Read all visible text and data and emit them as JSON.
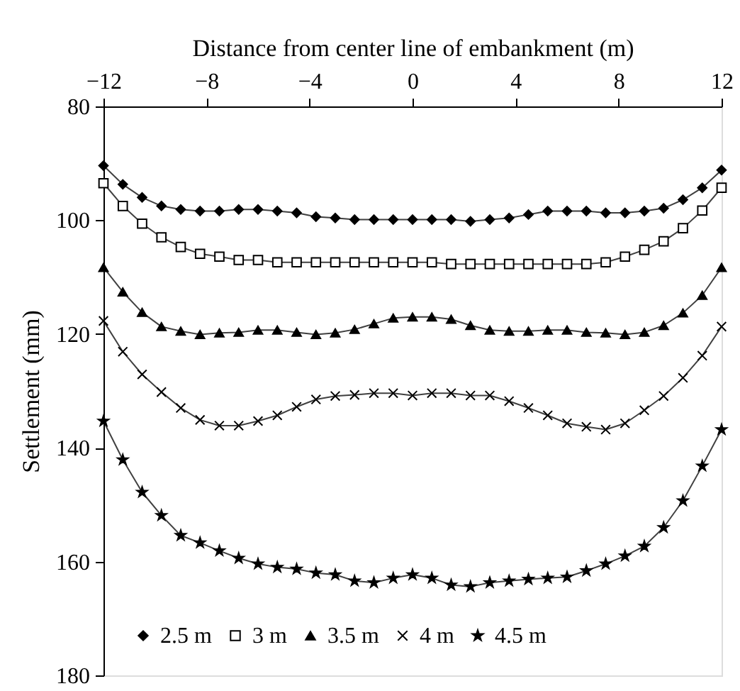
{
  "chart_data": {
    "type": "line",
    "xlabel": "Distance from center line of embankment (m)",
    "ylabel": "Settlement (mm)",
    "x": [
      -12,
      -11.25,
      -10.5,
      -9.75,
      -9,
      -8.25,
      -7.5,
      -6.75,
      -6,
      -5.25,
      -4.5,
      -3.75,
      -3,
      -2.25,
      -1.5,
      -0.75,
      0,
      0.75,
      1.5,
      2.25,
      3,
      3.75,
      4.5,
      5.25,
      6,
      6.75,
      7.5,
      8.25,
      9,
      9.75,
      10.5,
      11.25,
      12
    ],
    "xlim": [
      -12,
      12
    ],
    "xticks": [
      -12,
      -8,
      -4,
      0,
      4,
      8,
      12
    ],
    "ylim": [
      180,
      80
    ],
    "yticks": [
      80,
      100,
      120,
      140,
      160,
      180
    ],
    "grid": false,
    "legend": "bottom",
    "series": [
      {
        "name": "2.5 m",
        "color": "#000000",
        "marker": "diamond",
        "values": [
          90.4,
          93.7,
          96.0,
          97.5,
          98.1,
          98.4,
          98.4,
          98.1,
          98.1,
          98.4,
          98.7,
          99.4,
          99.6,
          99.9,
          99.9,
          99.9,
          99.9,
          99.9,
          99.9,
          100.2,
          99.9,
          99.6,
          99.0,
          98.4,
          98.4,
          98.4,
          98.7,
          98.7,
          98.4,
          97.9,
          96.4,
          94.3,
          91.2
        ]
      },
      {
        "name": "3 m",
        "color": "#000000",
        "marker": "square",
        "values": [
          93.5,
          97.5,
          100.6,
          103.0,
          104.7,
          105.9,
          106.4,
          107.0,
          107.0,
          107.4,
          107.4,
          107.4,
          107.4,
          107.4,
          107.4,
          107.4,
          107.4,
          107.4,
          107.7,
          107.7,
          107.7,
          107.7,
          107.7,
          107.7,
          107.7,
          107.7,
          107.4,
          106.4,
          105.2,
          103.7,
          101.4,
          98.3,
          94.3
        ]
      },
      {
        "name": "3.5 m",
        "color": "#000000",
        "marker": "triangle",
        "values": [
          108.3,
          112.6,
          116.2,
          118.7,
          119.5,
          120.1,
          119.8,
          119.7,
          119.3,
          119.3,
          119.7,
          120.1,
          119.8,
          119.2,
          118.2,
          117.2,
          117.0,
          117.0,
          117.4,
          118.5,
          119.3,
          119.5,
          119.5,
          119.3,
          119.3,
          119.7,
          119.8,
          120.1,
          119.7,
          118.5,
          116.3,
          113.2,
          108.3
        ]
      },
      {
        "name": "4 m",
        "color": "#000000",
        "marker": "cross",
        "values": [
          117.7,
          123.1,
          127.1,
          130.2,
          133.0,
          135.1,
          136.1,
          136.1,
          135.3,
          134.3,
          132.8,
          131.5,
          130.9,
          130.7,
          130.4,
          130.4,
          130.8,
          130.4,
          130.4,
          130.8,
          130.8,
          131.8,
          133.0,
          134.3,
          135.7,
          136.3,
          136.8,
          135.7,
          133.4,
          130.9,
          127.7,
          123.8,
          118.7
        ]
      },
      {
        "name": "4.5 m",
        "color": "#000000",
        "marker": "star",
        "values": [
          135.3,
          142.1,
          147.8,
          151.9,
          155.4,
          156.7,
          158.1,
          159.4,
          160.4,
          161.0,
          161.3,
          162.0,
          162.3,
          163.4,
          163.7,
          162.9,
          162.3,
          162.9,
          164.1,
          164.4,
          163.7,
          163.4,
          163.1,
          162.9,
          162.7,
          161.6,
          160.4,
          159.0,
          157.3,
          154.0,
          149.3,
          143.2,
          136.8
        ]
      }
    ]
  }
}
